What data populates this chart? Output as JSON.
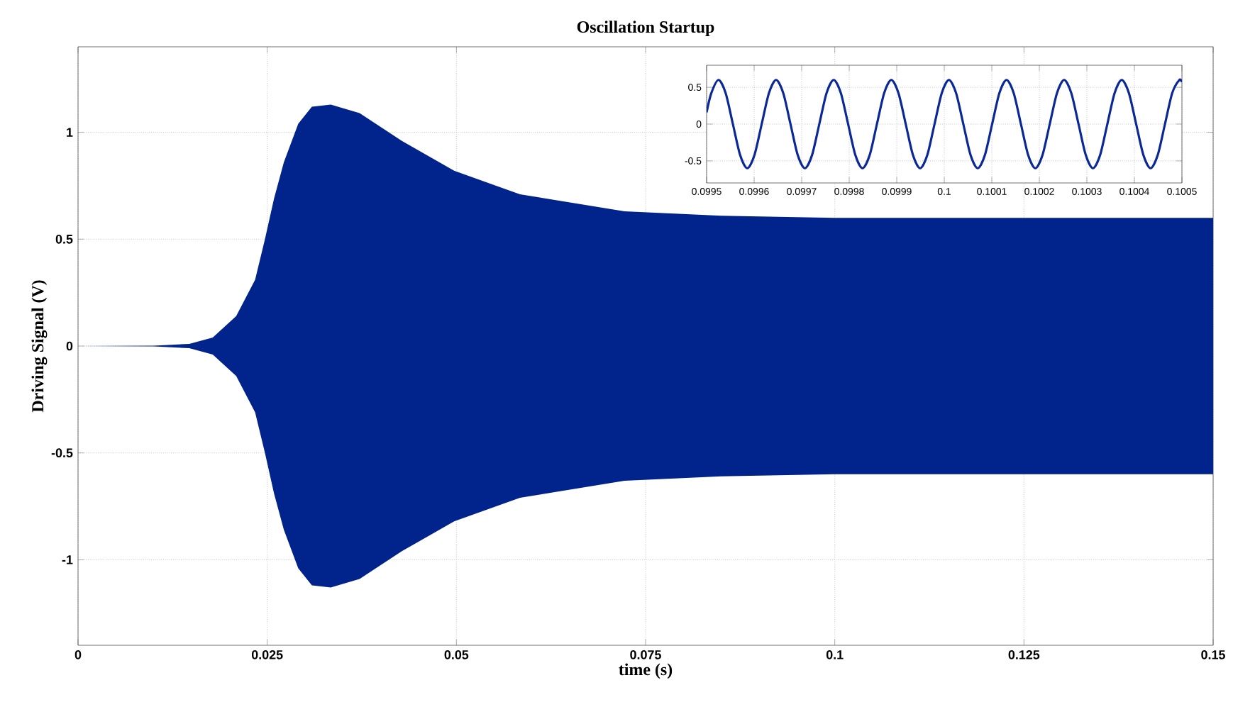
{
  "chart_data": [
    {
      "type": "area",
      "title": "Oscillation Startup",
      "xlabel": "time (s)",
      "ylabel": "Driving Signal (V)",
      "x": [
        0,
        0.01,
        0.0147,
        0.0178,
        0.0209,
        0.0234,
        0.0247,
        0.0259,
        0.0272,
        0.0291,
        0.0309,
        0.0334,
        0.0372,
        0.0428,
        0.0497,
        0.0584,
        0.0722,
        0.085,
        0.1,
        0.15
      ],
      "series": [
        {
          "color": "#00238c",
          "values": [
            0,
            0.002,
            0.01,
            0.04,
            0.14,
            0.31,
            0.5,
            0.69,
            0.86,
            1.04,
            1.12,
            1.13,
            1.09,
            0.96,
            0.82,
            0.71,
            0.63,
            0.61,
            0.6,
            0.6
          ]
        },
        {
          "color": "#00238c",
          "values": [
            0,
            -0.002,
            -0.01,
            -0.04,
            -0.14,
            -0.31,
            -0.5,
            -0.69,
            -0.86,
            -1.04,
            -1.12,
            -1.13,
            -1.09,
            -0.96,
            -0.82,
            -0.71,
            -0.63,
            -0.61,
            -0.6,
            -0.6
          ]
        }
      ],
      "xlim": [
        0,
        0.15
      ],
      "ylim": [
        -1.4,
        1.4
      ],
      "xticks": [
        0,
        0.025,
        0.05,
        0.075,
        0.1,
        0.125,
        0.15
      ],
      "yticks": [
        -1,
        -0.5,
        0,
        0.5,
        1
      ],
      "grid": true
    },
    {
      "type": "line",
      "x": [
        0.0995,
        0.09950985,
        0.099525,
        0.09954015,
        0.0995553,
        0.09957045,
        0.0995856,
        0.09960075,
        0.0996159,
        0.09963105,
        0.0996462,
        0.09966135,
        0.0996765,
        0.09969165,
        0.0997068,
        0.09972195,
        0.0997371,
        0.09975225,
        0.0997674,
        0.09978255,
        0.0997977,
        0.09981285,
        0.099828,
        0.09984315,
        0.0998583,
        0.09987345,
        0.0998886,
        0.09990375,
        0.0999189,
        0.09993405,
        0.0999492,
        0.09996435,
        0.0999795,
        0.09999465,
        0.1000098,
        0.10002495,
        0.1000401,
        0.10005525,
        0.1000704,
        0.10008555,
        0.1001007,
        0.10011585,
        0.100131,
        0.10014615,
        0.1001613,
        0.10017645,
        0.1001916,
        0.10020675,
        0.1002219,
        0.10023705,
        0.1002522,
        0.10026735,
        0.1002825,
        0.10029765,
        0.1003128,
        0.10032795,
        0.1003431,
        0.10035825,
        0.1003734,
        0.10038855,
        0.1004037,
        0.10041885,
        0.100434,
        0.10044915,
        0.1004643,
        0.10047945,
        0.1004946,
        0.1005
      ],
      "series": [
        {
          "color": "#0a2896",
          "values": [
            0.16,
            0.42,
            0.6,
            0.42,
            0,
            -0.42,
            -0.6,
            -0.42,
            0,
            0.42,
            0.6,
            0.42,
            0,
            -0.42,
            -0.6,
            -0.42,
            0,
            0.42,
            0.6,
            0.42,
            0,
            -0.42,
            -0.6,
            -0.42,
            0,
            0.42,
            0.6,
            0.42,
            0,
            -0.42,
            -0.6,
            -0.42,
            0,
            0.42,
            0.6,
            0.42,
            0,
            -0.42,
            -0.6,
            -0.42,
            0,
            0.42,
            0.6,
            0.42,
            0,
            -0.42,
            -0.6,
            -0.42,
            0,
            0.42,
            0.6,
            0.42,
            0,
            -0.42,
            -0.6,
            -0.42,
            0,
            0.42,
            0.6,
            0.42,
            0,
            -0.42,
            -0.6,
            -0.42,
            0,
            0.42,
            0.6,
            0.57
          ]
        }
      ],
      "xlim": [
        0.0995,
        0.1005
      ],
      "ylim": [
        -0.8,
        0.8
      ],
      "xticks": [
        0.0995,
        0.0996,
        0.0997,
        0.0998,
        0.0999,
        0.1,
        0.1001,
        0.1002,
        0.1003,
        0.1004,
        0.1005
      ],
      "yticks": [
        -0.5,
        0,
        0.5
      ],
      "grid": true
    }
  ]
}
